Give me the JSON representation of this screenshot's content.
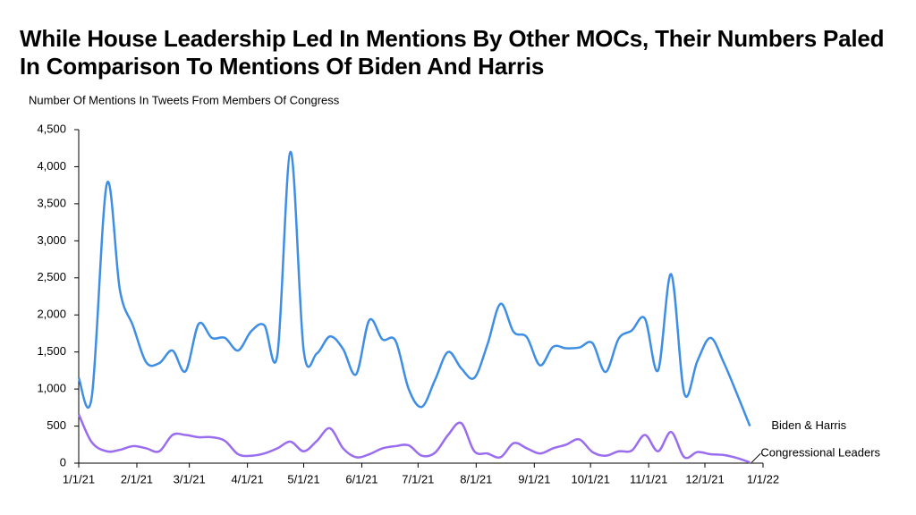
{
  "chart_data": {
    "type": "line",
    "title": "While House Leadership Led In Mentions By Other MOCs, Their Numbers Paled In Comparison To Mentions Of Biden And Harris",
    "y_label": "Number Of Mentions In Tweets From Members Of Congress",
    "x": [
      "1/1/21",
      "1/8/21",
      "1/16/21",
      "1/23/21",
      "1/30/21",
      "2/6/21",
      "2/13/21",
      "2/20/21",
      "2/27/21",
      "3/6/21",
      "3/13/21",
      "3/20/21",
      "3/27/21",
      "4/3/21",
      "4/10/21",
      "4/17/21",
      "4/24/21",
      "5/1/21",
      "5/8/21",
      "5/15/21",
      "5/22/21",
      "5/29/21",
      "6/5/21",
      "6/12/21",
      "6/19/21",
      "6/26/21",
      "7/3/21",
      "7/10/21",
      "7/17/21",
      "7/24/21",
      "7/31/21",
      "8/7/21",
      "8/14/21",
      "8/21/21",
      "8/28/21",
      "9/4/21",
      "9/11/21",
      "9/18/21",
      "9/25/21",
      "10/2/21",
      "10/9/21",
      "10/16/21",
      "10/23/21",
      "10/30/21",
      "11/6/21",
      "11/13/21",
      "11/20/21",
      "11/27/21",
      "12/4/21",
      "12/11/21",
      "12/18/21",
      "12/25/21"
    ],
    "series": [
      {
        "name": "Biden & Harris",
        "color": "#3f8ee6",
        "values": [
          1150,
          900,
          3770,
          2330,
          1850,
          1360,
          1350,
          1520,
          1240,
          1880,
          1690,
          1690,
          1520,
          1780,
          1860,
          1470,
          4200,
          1520,
          1480,
          1710,
          1540,
          1200,
          1930,
          1670,
          1650,
          1000,
          760,
          1120,
          1500,
          1280,
          1150,
          1600,
          2150,
          1770,
          1700,
          1320,
          1570,
          1550,
          1560,
          1620,
          1230,
          1680,
          1790,
          1950,
          1250,
          2550,
          940,
          1380,
          1690,
          1360,
          940,
          500
        ]
      },
      {
        "name": "Congressional Leaders",
        "color": "#9a6cf0",
        "values": [
          660,
          280,
          160,
          180,
          230,
          200,
          160,
          380,
          380,
          350,
          350,
          300,
          120,
          100,
          130,
          200,
          290,
          160,
          300,
          470,
          200,
          80,
          120,
          200,
          230,
          240,
          100,
          140,
          380,
          540,
          160,
          130,
          80,
          270,
          200,
          130,
          200,
          250,
          320,
          150,
          100,
          160,
          170,
          380,
          160,
          420,
          80,
          150,
          120,
          110,
          70,
          10
        ]
      }
    ],
    "xlim": [
      "1/1/21",
      "1/1/22"
    ],
    "xticks": [
      "1/1/21",
      "2/1/21",
      "3/1/21",
      "4/1/21",
      "5/1/21",
      "6/1/21",
      "7/1/21",
      "8/1/21",
      "9/1/21",
      "10/1/21",
      "11/1/21",
      "12/1/21",
      "1/1/22"
    ],
    "ylim": [
      0,
      4500
    ],
    "yticks": [
      0,
      500,
      {
        "value": 1000,
        "label": "1,000"
      },
      {
        "value": 1500,
        "label": "1,500"
      },
      {
        "value": 2000,
        "label": "2,000"
      },
      {
        "value": 2500,
        "label": "2,500"
      },
      {
        "value": 3000,
        "label": "3,000"
      },
      {
        "value": 3500,
        "label": "3,500"
      },
      {
        "value": 4000,
        "label": "4,000"
      },
      {
        "value": 4500,
        "label": "4,500"
      }
    ],
    "grid": false
  }
}
